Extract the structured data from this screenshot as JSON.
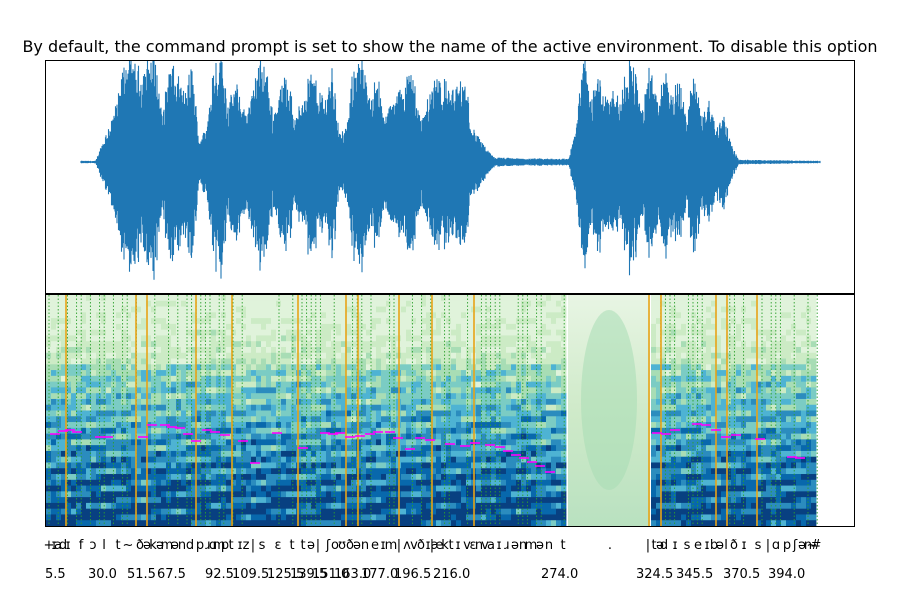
{
  "chart_data": {
    "type": "waveform-spectrogram",
    "title": "By default, the command prompt is set to show the name of the active environment. To disable this option",
    "waveform": {
      "color": "#1f77b4",
      "envelope": [
        [
          0.0,
          0.01
        ],
        [
          0.02,
          0.01
        ],
        [
          0.05,
          0.55
        ],
        [
          0.06,
          0.92
        ],
        [
          0.08,
          0.8
        ],
        [
          0.1,
          0.97
        ],
        [
          0.11,
          0.4
        ],
        [
          0.12,
          0.88
        ],
        [
          0.14,
          0.6
        ],
        [
          0.15,
          0.85
        ],
        [
          0.16,
          0.2
        ],
        [
          0.17,
          0.3
        ],
        [
          0.18,
          0.92
        ],
        [
          0.19,
          0.95
        ],
        [
          0.2,
          0.5
        ],
        [
          0.21,
          0.7
        ],
        [
          0.22,
          0.45
        ],
        [
          0.23,
          0.55
        ],
        [
          0.24,
          0.88
        ],
        [
          0.25,
          0.86
        ],
        [
          0.26,
          0.4
        ],
        [
          0.27,
          0.65
        ],
        [
          0.28,
          0.82
        ],
        [
          0.29,
          0.35
        ],
        [
          0.3,
          0.6
        ],
        [
          0.31,
          0.8
        ],
        [
          0.33,
          0.55
        ],
        [
          0.34,
          0.85
        ],
        [
          0.35,
          0.25
        ],
        [
          0.36,
          0.3
        ],
        [
          0.37,
          0.92
        ],
        [
          0.38,
          0.9
        ],
        [
          0.39,
          0.55
        ],
        [
          0.4,
          0.82
        ],
        [
          0.41,
          0.4
        ],
        [
          0.42,
          0.5
        ],
        [
          0.44,
          0.75
        ],
        [
          0.45,
          0.8
        ],
        [
          0.46,
          0.35
        ],
        [
          0.48,
          0.78
        ],
        [
          0.5,
          0.65
        ],
        [
          0.52,
          0.72
        ],
        [
          0.53,
          0.3
        ],
        [
          0.54,
          0.2
        ],
        [
          0.55,
          0.1
        ],
        [
          0.56,
          0.04
        ],
        [
          0.6,
          0.03
        ],
        [
          0.64,
          0.03
        ],
        [
          0.66,
          0.03
        ],
        [
          0.67,
          0.3
        ],
        [
          0.68,
          0.98
        ],
        [
          0.69,
          0.55
        ],
        [
          0.7,
          0.8
        ],
        [
          0.71,
          0.6
        ],
        [
          0.72,
          0.72
        ],
        [
          0.73,
          0.5
        ],
        [
          0.74,
          0.95
        ],
        [
          0.75,
          0.8
        ],
        [
          0.76,
          0.45
        ],
        [
          0.77,
          0.88
        ],
        [
          0.78,
          0.5
        ],
        [
          0.79,
          0.82
        ],
        [
          0.8,
          0.6
        ],
        [
          0.81,
          0.7
        ],
        [
          0.82,
          0.4
        ],
        [
          0.83,
          0.82
        ],
        [
          0.84,
          0.4
        ],
        [
          0.85,
          0.55
        ],
        [
          0.86,
          0.3
        ],
        [
          0.87,
          0.45
        ],
        [
          0.88,
          0.15
        ],
        [
          0.89,
          0.02
        ],
        [
          1.0,
          0.01
        ]
      ]
    },
    "spectrogram": {
      "colormap": "GnBu",
      "phoneme_boundary_color": "#e8a317",
      "frame_grid_color": "#2ca02c",
      "pitch_color": "#ff00ff"
    },
    "phonemes": [
      "+",
      "ɪ",
      "a",
      "d",
      "ɪ",
      "f",
      "ɔ",
      "l",
      "t",
      "~",
      "ð",
      "ə",
      "k",
      "ə",
      "m",
      "ə",
      "n",
      "d",
      "p",
      "ɹ",
      "ɑ",
      "m",
      "p",
      "t",
      "ɪ",
      "z",
      "|",
      "s",
      "ɛ",
      "t",
      "t",
      "ə",
      "|",
      "ʃ",
      "o",
      "ʊ",
      "ð",
      "ə",
      "n",
      "e",
      "ɪ",
      "m",
      "|",
      "ʌ",
      "v",
      "ð",
      "ɪ",
      "|",
      "æ",
      "k",
      "t",
      "ɪ",
      "v",
      "ɛ",
      "n",
      "v",
      "a",
      "ɪ",
      "ɹ",
      "ə",
      "n",
      "m",
      "ə",
      "n",
      "t",
      ".",
      "|",
      "t",
      "ə",
      "d",
      "ɪ",
      "s",
      "e",
      "ɪ",
      "b",
      "ə",
      "l",
      "ð",
      "ɪ",
      "s",
      "|",
      "ɑ",
      "p",
      "ʃ",
      "ə",
      "n",
      "~",
      "#"
    ],
    "durations": [
      "5.5",
      "30.0",
      "51.5",
      "67.5",
      "92.5",
      "109.5",
      "125.5",
      "139.5",
      "151.0",
      "163.0",
      "177.0",
      "196.5",
      "216.0",
      "274.0",
      "324.5",
      "345.5",
      "370.5",
      "394.0"
    ]
  }
}
